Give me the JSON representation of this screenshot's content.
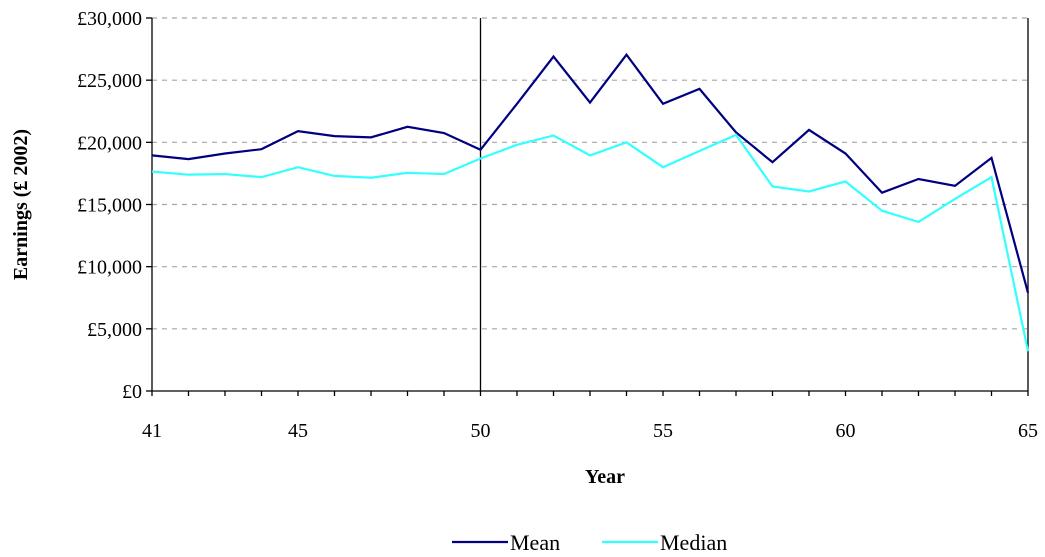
{
  "chart_data": {
    "type": "line",
    "xlabel": "Year",
    "ylabel": "Earnings (£ 2002)",
    "xlim": [
      41,
      65
    ],
    "ylim": [
      0,
      30000
    ],
    "x_ticks": [
      41,
      45,
      50,
      55,
      60,
      65
    ],
    "x_tick_labels": [
      "41",
      "45",
      "50",
      "55",
      "60",
      "65"
    ],
    "y_ticks": [
      0,
      5000,
      10000,
      15000,
      20000,
      25000,
      30000
    ],
    "y_tick_labels": [
      "£0",
      "£5,000",
      "£10,000",
      "£15,000",
      "£20,000",
      "£25,000",
      "£30,000"
    ],
    "grid": "horizontal dashed",
    "legend_position": "bottom-center",
    "reference_line_x": 50,
    "x": [
      41,
      42,
      43,
      44,
      45,
      46,
      47,
      48,
      49,
      50,
      51,
      52,
      53,
      54,
      55,
      56,
      57,
      58,
      59,
      60,
      61,
      62,
      63,
      64,
      65
    ],
    "series": [
      {
        "name": "Mean",
        "color": "#000080",
        "values": [
          18950,
          18650,
          19100,
          19450,
          20900,
          20500,
          20400,
          21250,
          20750,
          19400,
          23100,
          26900,
          23200,
          27050,
          23100,
          24300,
          20800,
          18400,
          21000,
          19100,
          15950,
          17050,
          16500,
          18750,
          7900
        ]
      },
      {
        "name": "Median",
        "color": "#33FFFF",
        "values": [
          17650,
          17400,
          17450,
          17200,
          18000,
          17300,
          17150,
          17550,
          17450,
          18700,
          19800,
          20550,
          18950,
          20000,
          18000,
          19300,
          20600,
          16450,
          16050,
          16850,
          14500,
          13600,
          15450,
          17200,
          3200
        ]
      }
    ]
  }
}
